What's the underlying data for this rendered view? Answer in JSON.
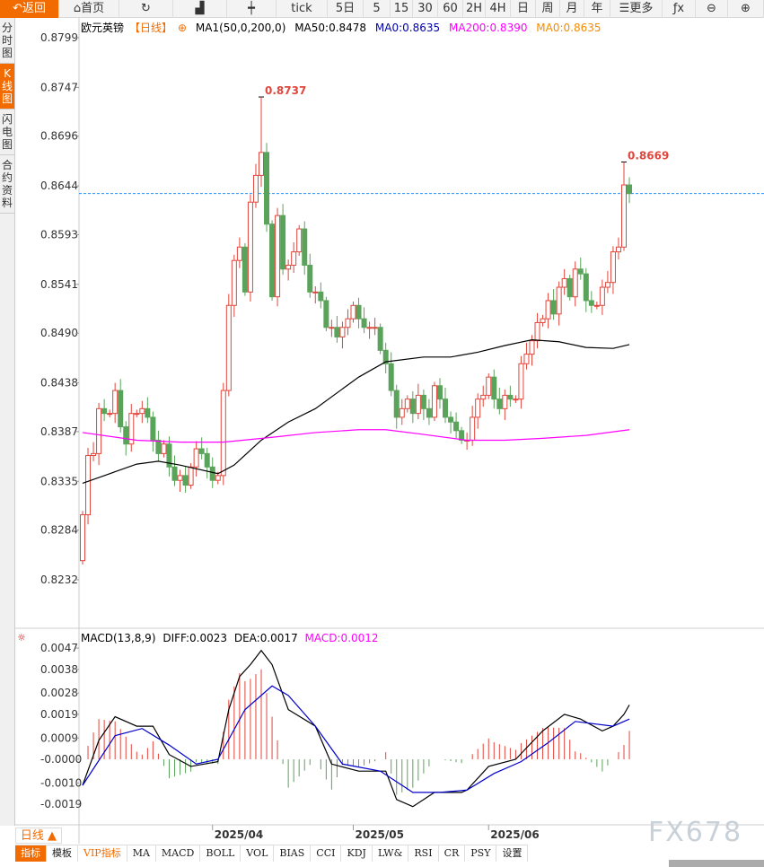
{
  "toolbar": {
    "items": [
      {
        "label": "返回",
        "icon": "back-arrow-icon"
      },
      {
        "label": "首页",
        "icon": "home-icon"
      },
      {
        "label": "",
        "icon": "refresh-icon"
      },
      {
        "label": "",
        "icon": "bar-chart-icon"
      },
      {
        "label": "",
        "icon": "candlestick-icon"
      },
      {
        "label": "tick"
      },
      {
        "label": "5日"
      },
      {
        "label": "5"
      },
      {
        "label": "15"
      },
      {
        "label": "30"
      },
      {
        "label": "60"
      },
      {
        "label": "2H"
      },
      {
        "label": "4H"
      },
      {
        "label": "日"
      },
      {
        "label": "周"
      },
      {
        "label": "月"
      },
      {
        "label": "年"
      },
      {
        "label": "更多",
        "icon": "menu-icon"
      },
      {
        "label": "",
        "icon": "fx-icon"
      },
      {
        "label": "",
        "icon": "zoom-out-icon"
      },
      {
        "label": "",
        "icon": "zoom-in-icon"
      }
    ]
  },
  "sidebar": {
    "tabs": [
      "分时图",
      "K线图",
      "闪电图",
      "合约资料"
    ],
    "active": 1
  },
  "legend": {
    "symbol": "欧元英镑",
    "period": "【日线】",
    "indicator": "MA1(50,0,200,0)",
    "ma50": "MA50:0.8478",
    "ma0a": "MA0:0.8635",
    "ma200": "MA200:0.8390",
    "ma0b": "MA0:0.8635"
  },
  "macd_legend": {
    "name": "MACD(13,8,9)",
    "diff": "DIFF:0.0023",
    "dea": "DEA:0.0017",
    "macd": "MACD:0.0012"
  },
  "colors": {
    "up": "#e0463c",
    "down": "#5aa35a",
    "ma50": "#000000",
    "ma200": "#ff00ff",
    "current": "#1e90ff",
    "accent": "#f26b00",
    "dea": "#0000cc"
  },
  "chart_data": {
    "type": "candlestick",
    "title": "欧元英镑 日线",
    "price_ticks": [
      "0.8799",
      "0.8747",
      "0.8696",
      "0.8644",
      "0.8593",
      "0.8541",
      "0.8490",
      "0.8438",
      "0.8387",
      "0.8335",
      "0.8284",
      "0.8232"
    ],
    "ylim": [
      0.8232,
      0.8799
    ],
    "x_labels": [
      {
        "index": 24,
        "label": "2025/04"
      },
      {
        "index": 50,
        "label": "2025/05"
      },
      {
        "index": 75,
        "label": "2025/06"
      }
    ],
    "first_open": 0.8252,
    "closes": [
      0.83,
      0.8362,
      0.8364,
      0.8411,
      0.8406,
      0.8406,
      0.843,
      0.8392,
      0.8374,
      0.8406,
      0.8406,
      0.8411,
      0.8402,
      0.8378,
      0.8364,
      0.8374,
      0.835,
      0.8336,
      0.8341,
      0.8331,
      0.835,
      0.8369,
      0.8364,
      0.835,
      0.8336,
      0.8341,
      0.843,
      0.8519,
      0.8566,
      0.858,
      0.8533,
      0.8627,
      0.8655,
      0.8679,
      0.8604,
      0.8528,
      0.8613,
      0.8557,
      0.8561,
      0.8575,
      0.8599,
      0.8561,
      0.8533,
      0.8533,
      0.8524,
      0.8496,
      0.8496,
      0.8486,
      0.8496,
      0.8505,
      0.8519,
      0.8505,
      0.8496,
      0.8496,
      0.8496,
      0.8472,
      0.8458,
      0.843,
      0.8402,
      0.8411,
      0.8421,
      0.8406,
      0.8425,
      0.8411,
      0.8402,
      0.8435,
      0.8421,
      0.8402,
      0.8397,
      0.8388,
      0.8378,
      0.8378,
      0.8402,
      0.8421,
      0.8425,
      0.8444,
      0.8421,
      0.8411,
      0.8425,
      0.8421,
      0.8421,
      0.8458,
      0.8468,
      0.8482,
      0.8501,
      0.8505,
      0.8524,
      0.851,
      0.8538,
      0.8547,
      0.8528,
      0.8557,
      0.8552,
      0.8524,
      0.8519,
      0.8519,
      0.8538,
      0.8543,
      0.8575,
      0.858,
      0.8645,
      0.8636
    ],
    "high_marks": [
      {
        "index": 33,
        "value": "0.8737"
      },
      {
        "index": 100,
        "value": "0.8669"
      }
    ],
    "current_price": 0.8636,
    "ma50": [
      [
        0,
        0.8333
      ],
      [
        5,
        0.8343
      ],
      [
        10,
        0.8353
      ],
      [
        14,
        0.8356
      ],
      [
        18,
        0.8352
      ],
      [
        25,
        0.8343
      ],
      [
        28,
        0.8352
      ],
      [
        33,
        0.8378
      ],
      [
        38,
        0.8397
      ],
      [
        43,
        0.8411
      ],
      [
        51,
        0.8444
      ],
      [
        56,
        0.846
      ],
      [
        63,
        0.8465
      ],
      [
        68,
        0.8465
      ],
      [
        73,
        0.847
      ],
      [
        78,
        0.8477
      ],
      [
        83,
        0.8483
      ],
      [
        88,
        0.8481
      ],
      [
        93,
        0.8475
      ],
      [
        98,
        0.8474
      ],
      [
        101,
        0.8478
      ]
    ],
    "ma200": [
      [
        0,
        0.8386
      ],
      [
        10,
        0.8378
      ],
      [
        18,
        0.8376
      ],
      [
        26,
        0.8376
      ],
      [
        35,
        0.8381
      ],
      [
        43,
        0.8386
      ],
      [
        51,
        0.8389
      ],
      [
        56,
        0.8389
      ],
      [
        63,
        0.8384
      ],
      [
        71,
        0.8378
      ],
      [
        78,
        0.8378
      ],
      [
        85,
        0.838
      ],
      [
        93,
        0.8383
      ],
      [
        101,
        0.8389
      ]
    ],
    "macd": {
      "ticks": [
        "0.0047",
        "0.0038",
        "0.0028",
        "0.0019",
        "0.0009",
        "-0.0000",
        "-0.0010",
        "-0.0019"
      ],
      "ylim": [
        -0.0019,
        0.0047
      ],
      "diff": [
        [
          0,
          -0.0011
        ],
        [
          3,
          0.0008
        ],
        [
          6,
          0.0018
        ],
        [
          10,
          0.0014
        ],
        [
          13,
          0.0014
        ],
        [
          16,
          0.0002
        ],
        [
          20,
          -0.0003
        ],
        [
          25,
          -0.0001
        ],
        [
          27,
          0.0021
        ],
        [
          29,
          0.0035
        ],
        [
          31,
          0.004
        ],
        [
          33,
          0.0046
        ],
        [
          35,
          0.004
        ],
        [
          38,
          0.0021
        ],
        [
          43,
          0.0014
        ],
        [
          46,
          -0.0002
        ],
        [
          51,
          -0.0005
        ],
        [
          56,
          -0.0005
        ],
        [
          58,
          -0.0017
        ],
        [
          61,
          -0.002
        ],
        [
          65,
          -0.0014
        ],
        [
          70,
          -0.0014
        ],
        [
          71,
          -0.0013
        ],
        [
          75,
          -0.0003
        ],
        [
          80,
          0.0
        ],
        [
          85,
          0.0012
        ],
        [
          89,
          0.0019
        ],
        [
          92,
          0.0017
        ],
        [
          96,
          0.0012
        ],
        [
          98,
          0.0014
        ],
        [
          100,
          0.0019
        ],
        [
          101,
          0.0023
        ]
      ],
      "dea": [
        [
          0,
          -0.0011
        ],
        [
          6,
          0.001
        ],
        [
          11,
          0.0013
        ],
        [
          16,
          0.0006
        ],
        [
          21,
          -0.0002
        ],
        [
          25,
          0.0
        ],
        [
          30,
          0.0021
        ],
        [
          35,
          0.0031
        ],
        [
          38,
          0.0027
        ],
        [
          43,
          0.0014
        ],
        [
          48,
          -0.0002
        ],
        [
          55,
          -0.0005
        ],
        [
          61,
          -0.0014
        ],
        [
          66,
          -0.0014
        ],
        [
          71,
          -0.0013
        ],
        [
          76,
          -0.0006
        ],
        [
          81,
          -0.0001
        ],
        [
          86,
          0.0007
        ],
        [
          91,
          0.0016
        ],
        [
          98,
          0.0014
        ],
        [
          101,
          0.0017
        ]
      ]
    }
  },
  "bottom": {
    "period_button": "日线 ▲",
    "tabs": [
      "指标",
      "模板",
      "VIP指标",
      "MA",
      "MACD",
      "BOLL",
      "VOL",
      "BIAS",
      "CCI",
      "KDJ",
      "LW&",
      "RSI",
      "CR",
      "PSY",
      "设置"
    ],
    "watermark": "FX678"
  }
}
